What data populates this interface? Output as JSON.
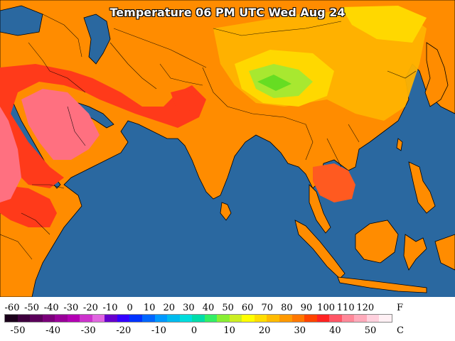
{
  "title": "Temperature 06 PM UTC Wed Aug 24",
  "legend": {
    "fahrenheit_unit": "F",
    "celsius_unit": "C",
    "fahrenheit_ticks": [
      "-60",
      "-50",
      "-40",
      "-30",
      "-20",
      "-10",
      "0",
      "10",
      "20",
      "30",
      "40",
      "50",
      "60",
      "70",
      "80",
      "90",
      "100",
      "110",
      "120"
    ],
    "celsius_ticks": [
      "-50",
      "-40",
      "-30",
      "-20",
      "-10",
      "0",
      "10",
      "20",
      "30",
      "40",
      "50"
    ],
    "colors": [
      "#1a001a",
      "#3d003d",
      "#5a005a",
      "#7a007a",
      "#990099",
      "#b300b3",
      "#cc33cc",
      "#e066e0",
      "#6600cc",
      "#3300ff",
      "#0033ff",
      "#0066ff",
      "#0099ff",
      "#00bbee",
      "#00dddd",
      "#00ddaa",
      "#33ee66",
      "#88ee33",
      "#ccee22",
      "#ffff00",
      "#ffdd00",
      "#ffbb00",
      "#ff9900",
      "#ff7700",
      "#ff4400",
      "#ff2222",
      "#ff5566",
      "#ff8899",
      "#ffaabb",
      "#ffd0dd",
      "#fff0f4"
    ]
  },
  "colors": {
    "ocean": "#2a68a0",
    "hot": "#ff8c00",
    "very_hot": "#ff3a1a",
    "extreme": "#ff7080",
    "warm": "#ffb300",
    "mild": "#ffd800",
    "cool": "#88e030"
  }
}
